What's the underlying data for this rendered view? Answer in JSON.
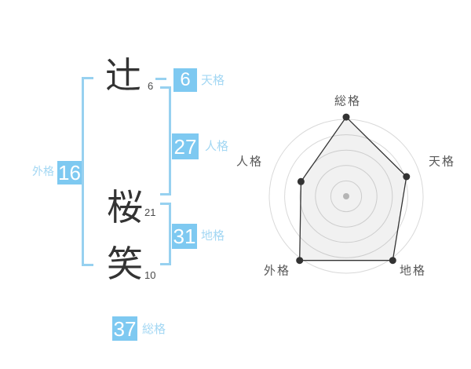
{
  "name": {
    "chars": [
      {
        "char": "辻",
        "strokes": "6"
      },
      {
        "char": "桜",
        "strokes": "21"
      },
      {
        "char": "笑",
        "strokes": "10"
      }
    ]
  },
  "badges": {
    "tenkaku": {
      "value": "6",
      "label": "天格"
    },
    "jinkaku": {
      "value": "27",
      "label": "人格"
    },
    "chikaku": {
      "value": "31",
      "label": "地格"
    },
    "gaikaku": {
      "value": "16",
      "label": "外格"
    },
    "soukaku": {
      "value": "37",
      "label": "総格"
    }
  },
  "chart_data": {
    "type": "radar",
    "axes": [
      "総格",
      "天格",
      "地格",
      "外格",
      "人格"
    ],
    "values": [
      5,
      4,
      5,
      5,
      3
    ],
    "max": 5,
    "rings": 5,
    "grid": "circular",
    "legend_position": "none",
    "title": ""
  },
  "colors": {
    "badge_bg": "#7ec9f1",
    "accent_text": "#a3d7f3",
    "bracket": "#97d1f0",
    "kanji": "#333333",
    "subscript": "#4a4a4a",
    "chart_label": "#595959",
    "ring": "#d9d9d9",
    "polygon_stroke": "#333333",
    "polygon_fill": "rgba(0,0,0,0.055)",
    "vertex_dot": "#333333",
    "center_dot": "#c0c0c0"
  }
}
